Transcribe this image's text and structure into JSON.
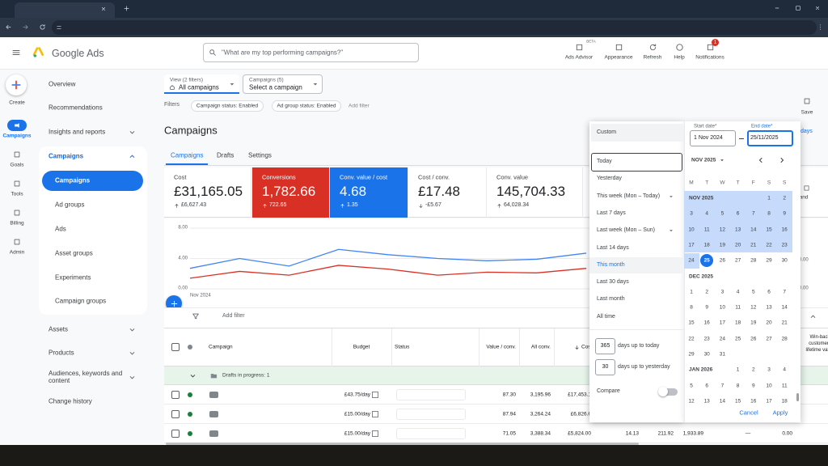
{
  "header": {
    "product": "Google Ads",
    "search": "\"What are my top performing campaigns?\"",
    "actions": [
      {
        "label": "Ads Advisor",
        "badge": "BETA"
      },
      {
        "label": "Appearance"
      },
      {
        "label": "Refresh"
      },
      {
        "label": "Help"
      },
      {
        "label": "Notifications",
        "badge": "1"
      }
    ]
  },
  "rail": [
    "Create",
    "Campaigns",
    "Goals",
    "Tools",
    "Billing",
    "Admin"
  ],
  "nav": {
    "top": [
      "Overview",
      "Recommendations",
      "Insights and reports"
    ],
    "group": "Campaigns",
    "sub": [
      "Campaigns",
      "Ad groups",
      "Ads",
      "Asset groups",
      "Experiments",
      "Campaign groups"
    ],
    "bottom": [
      "Assets",
      "Products",
      "Audiences, keywords and content",
      "Change history"
    ]
  },
  "toolbar": {
    "view": {
      "label": "View (2 filters)",
      "value": "All campaigns"
    },
    "campaign_select": {
      "label": "Campaigns (5)",
      "value": "Select a campaign"
    },
    "filters": "Filters",
    "chips": [
      "Campaign status: Enabled",
      "Ad group status: Enabled"
    ],
    "add_filter": "Add filter",
    "save": "Save"
  },
  "title": "Campaigns",
  "tabs": [
    "Campaigns",
    "Drafts",
    "Settings"
  ],
  "metrics": [
    {
      "label": "Cost",
      "value": "£31,165.05",
      "change": "£6,627.43",
      "trend": "up"
    },
    {
      "label": "Conversions",
      "value": "1,782.66",
      "change": "722.65",
      "trend": "up",
      "color": "#d93025"
    },
    {
      "label": "Conv. value / cost",
      "value": "4.68",
      "change": "1.35",
      "trend": "up",
      "color": "#1a73e8"
    },
    {
      "label": "Cost / conv.",
      "value": "£17.48",
      "change": "-£5.67",
      "trend": "down"
    },
    {
      "label": "Conv. value",
      "value": "145,704.33",
      "change": "64,028.34",
      "trend": "up"
    },
    {
      "label": "C",
      "value": "5"
    }
  ],
  "expand": "pand",
  "chart": {
    "ylim": [
      0,
      8
    ],
    "yticks": [
      {
        "value": 0,
        "label": "0.00"
      },
      {
        "value": 4,
        "label": "4.00"
      },
      {
        "value": 8,
        "label": "8.00"
      }
    ],
    "start_label": "Nov 2024",
    "right_labels": [
      "0.00",
      "0.00"
    ],
    "series": [
      {
        "color": "#4285f4",
        "values": [
          2.7,
          4.0,
          3.0,
          5.2,
          4.5,
          4.0,
          3.7,
          3.9,
          4.7
        ]
      },
      {
        "color": "#d93025",
        "values": [
          1.4,
          2.3,
          1.8,
          3.1,
          2.6,
          1.8,
          2.2,
          2.1,
          2.7
        ]
      }
    ]
  },
  "table": {
    "add_filter": "Add filter",
    "columns": [
      "Campaign",
      "Budget",
      "Status",
      "Value / conv.",
      "All conv.",
      "Cost",
      "Win-back customers lifetime value"
    ],
    "group_row": "Drafts in progress: 1",
    "rows": [
      [
        "£43.75/day",
        "87.30",
        "3,195.96",
        "£17,453.1"
      ],
      [
        "£15.00/day",
        "87.94",
        "3,264.24",
        "£6,826.6"
      ],
      [
        "£15.00/day",
        "71.05",
        "3,388.34",
        "£5,824.00",
        "14.13",
        "211.92",
        "1,933.89",
        "—",
        "0.00"
      ]
    ]
  },
  "date_picker": {
    "presets": [
      {
        "label": "Custom",
        "state": "selected"
      },
      {
        "label": "Today",
        "state": "focused"
      },
      {
        "label": "Yesterday"
      },
      {
        "label": "This week (Mon – Today)",
        "submenu": true
      },
      {
        "label": "Last 7 days"
      },
      {
        "label": "Last week (Mon – Sun)",
        "submenu": true
      },
      {
        "label": "Last 14 days"
      },
      {
        "label": "This month",
        "state": "hover"
      },
      {
        "label": "Last 30 days"
      },
      {
        "label": "Last month"
      },
      {
        "label": "All time"
      }
    ],
    "custom_days": [
      {
        "value": 365,
        "label": "days up to today"
      },
      {
        "value": 30,
        "label": "days up to yesterday"
      }
    ],
    "compare": "Compare",
    "start": {
      "label": "Start date*",
      "value": "1 Nov 2024"
    },
    "end": {
      "label": "End date*",
      "value": "25/11/2025"
    },
    "link": "days",
    "month_select": "NOV 2025",
    "weekdays": [
      "M",
      "T",
      "W",
      "T",
      "F",
      "S",
      "S"
    ],
    "selected_day": 25,
    "months": [
      {
        "label": "NOV 2025",
        "selected": true,
        "weeks": [
          [
            null,
            null,
            null,
            null,
            null,
            1,
            2
          ],
          [
            3,
            4,
            5,
            6,
            7,
            8,
            9
          ],
          [
            10,
            11,
            12,
            13,
            14,
            15,
            16
          ],
          [
            17,
            18,
            19,
            20,
            21,
            22,
            23
          ],
          [
            24,
            25,
            26,
            27,
            28,
            29,
            30
          ]
        ]
      },
      {
        "label": "DEC 2025",
        "weeks": [
          [
            1,
            2,
            3,
            4,
            5,
            6,
            7
          ],
          [
            8,
            9,
            10,
            11,
            12,
            13,
            14
          ],
          [
            15,
            16,
            17,
            18,
            19,
            20,
            21
          ],
          [
            22,
            23,
            24,
            25,
            26,
            27,
            28
          ],
          [
            29,
            30,
            31,
            null,
            null,
            null,
            null
          ]
        ]
      },
      {
        "label": "JAN 2026",
        "weeks": [
          [
            null,
            null,
            null,
            1,
            2,
            3,
            4
          ],
          [
            5,
            6,
            7,
            8,
            9,
            10,
            11
          ],
          [
            12,
            13,
            14,
            15,
            16,
            17,
            18
          ]
        ]
      }
    ],
    "cancel": "Cancel",
    "apply": "Apply"
  }
}
